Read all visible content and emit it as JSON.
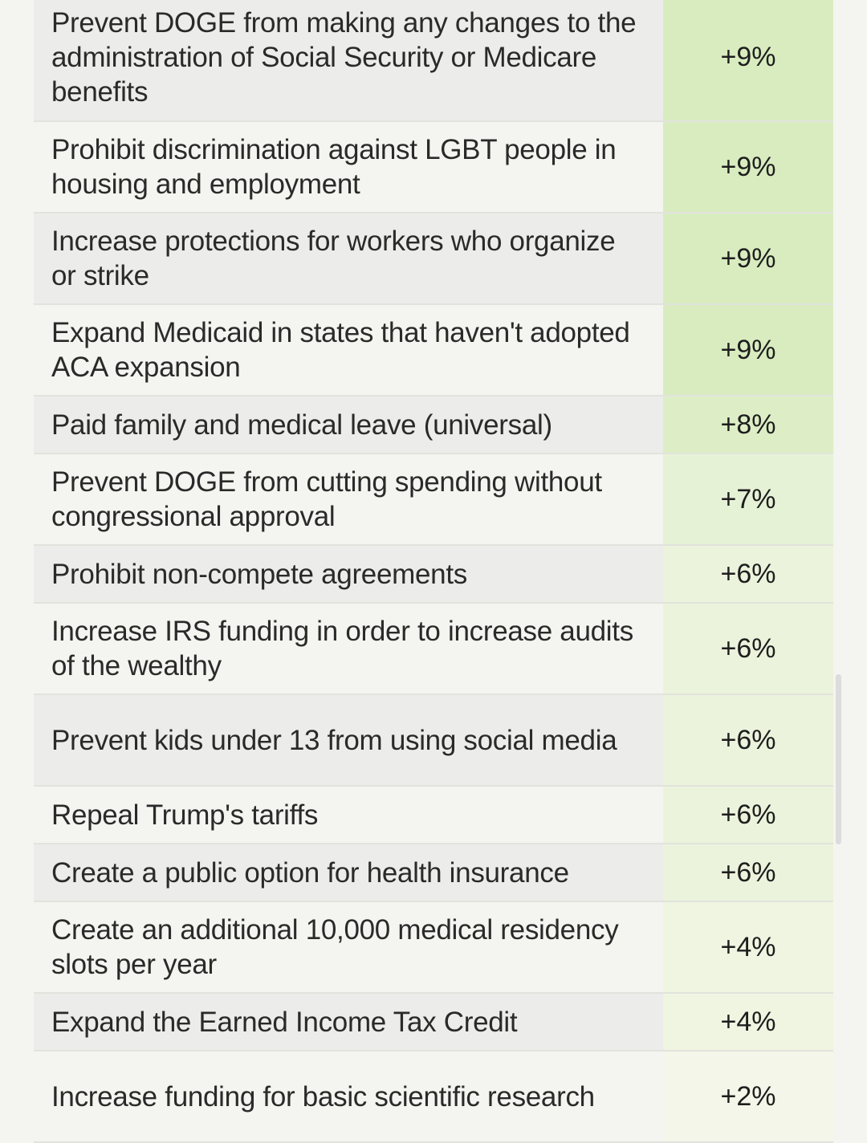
{
  "rows": [
    {
      "policy": "Prevent DOGE from making any changes to the administration of Social Security or Medicare benefits",
      "value": "+9%",
      "lines": 3,
      "color": "#d9ecc0"
    },
    {
      "policy": "Prohibit discrimination against LGBT people in housing and employment",
      "value": "+9%",
      "lines": 2,
      "color": "#d9ecc0"
    },
    {
      "policy": "Increase protections for workers who organize or strike",
      "value": "+9%",
      "lines": 2,
      "color": "#d9ecc0"
    },
    {
      "policy": "Expand Medicaid in states that haven't adopted ACA expansion",
      "value": "+9%",
      "lines": 2,
      "color": "#d9ecc0"
    },
    {
      "policy": "Paid family and medical leave (universal)",
      "value": "+8%",
      "lines": 1,
      "color": "#ddeec6"
    },
    {
      "policy": "Prevent DOGE from cutting spending without congressional approval",
      "value": "+7%",
      "lines": 2,
      "color": "#e6f2d6"
    },
    {
      "policy": "Prohibit non-compete agreements",
      "value": "+6%",
      "lines": 1,
      "color": "#ebf3dc"
    },
    {
      "policy": "Increase IRS funding in order to increase audits of the wealthy",
      "value": "+6%",
      "lines": 2,
      "color": "#ebf3dc"
    },
    {
      "policy": "Prevent kids under 13 from using social media",
      "value": "+6%",
      "lines": 2,
      "color": "#ebf3dc"
    },
    {
      "policy": "Repeal Trump's tariffs",
      "value": "+6%",
      "lines": 1,
      "color": "#ebf3dc"
    },
    {
      "policy": "Create a public option for health insurance",
      "value": "+6%",
      "lines": 1,
      "color": "#ebf3dc"
    },
    {
      "policy": "Create an additional 10,000 medical residency slots per year",
      "value": "+4%",
      "lines": 2,
      "color": "#eff5e1"
    },
    {
      "policy": "Expand the Earned Income Tax Credit",
      "value": "+4%",
      "lines": 1,
      "color": "#eff5e1"
    },
    {
      "policy": "Increase funding for basic scientific research",
      "value": "+2%",
      "lines": 2,
      "color": "#f3f6e8"
    }
  ]
}
